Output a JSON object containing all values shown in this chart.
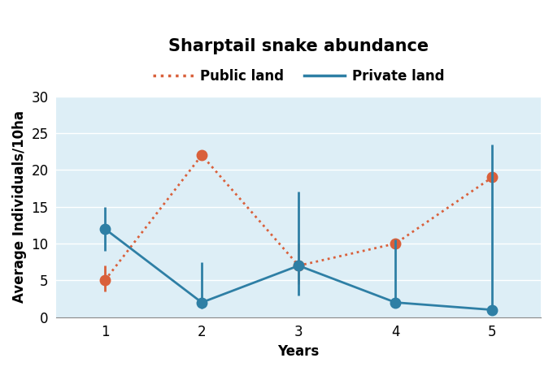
{
  "title": "Sharptail snake abundance",
  "xlabel": "Years",
  "ylabel": "Average Individuals/10ha",
  "years": [
    1,
    2,
    3,
    4,
    5
  ],
  "public_land": {
    "values": [
      5,
      22,
      7,
      10,
      19
    ],
    "yerr_lower": [
      1.5,
      0,
      2.5,
      0,
      0
    ],
    "yerr_upper": [
      2.0,
      0,
      3.0,
      0,
      0
    ],
    "color": "#d9603b",
    "label": "Public land"
  },
  "private_land": {
    "values": [
      12,
      2,
      7,
      2,
      1
    ],
    "yerr_lower": [
      3.0,
      0.8,
      4.0,
      0.5,
      0.3
    ],
    "yerr_upper": [
      3.0,
      5.5,
      10.0,
      8.5,
      22.5
    ],
    "color": "#2e7fa5",
    "label": "Private land"
  },
  "background_color": "#ddeef6",
  "ylim": [
    0,
    30
  ],
  "xlim": [
    0.5,
    5.5
  ],
  "yticks": [
    0,
    5,
    10,
    15,
    20,
    25,
    30
  ],
  "xticks": [
    1,
    2,
    3,
    4,
    5
  ],
  "title_fontsize": 15,
  "label_fontsize": 12,
  "tick_fontsize": 12,
  "legend_fontsize": 12
}
